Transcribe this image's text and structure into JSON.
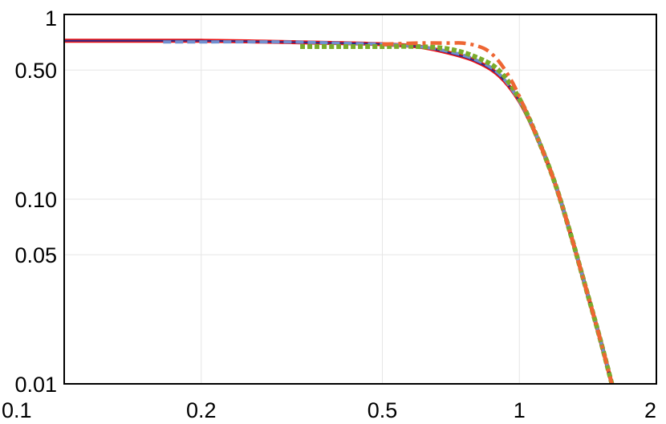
{
  "chart_data": {
    "type": "line",
    "title": "",
    "xlabel": "",
    "ylabel": "",
    "xscale": "log",
    "yscale": "log",
    "xlim": [
      0.1,
      2
    ],
    "ylim": [
      0.01,
      1
    ],
    "grid": true,
    "legend": "none",
    "x_ticks": [
      {
        "value": 0.1,
        "label": "0.1"
      },
      {
        "value": 0.2,
        "label": "0.2"
      },
      {
        "value": 0.5,
        "label": "0.5"
      },
      {
        "value": 1,
        "label": "1"
      },
      {
        "value": 2,
        "label": "2"
      }
    ],
    "y_ticks": [
      {
        "value": 0.01,
        "label": "0.01"
      },
      {
        "value": 0.05,
        "label": "0.05"
      },
      {
        "value": 0.1,
        "label": "0.10"
      },
      {
        "value": 0.5,
        "label": "0.50"
      },
      {
        "value": 1,
        "label": "1"
      }
    ],
    "series": [
      {
        "color": "#ee1111",
        "style": "solid",
        "x": [
          0.1,
          0.2,
          0.3,
          0.4,
          0.5,
          0.6,
          0.7,
          0.8,
          0.9,
          1.0,
          1.1,
          1.2,
          1.3,
          1.4,
          1.5,
          1.6
        ],
        "y": [
          0.72,
          0.72,
          0.71,
          0.7,
          0.69,
          0.67,
          0.62,
          0.56,
          0.47,
          0.34,
          0.21,
          0.12,
          0.063,
          0.033,
          0.018,
          0.0098
        ]
      },
      {
        "color": "#2a2d8f",
        "style": "solid-thin",
        "x": [
          0.1,
          0.2,
          0.3,
          0.4,
          0.5,
          0.6,
          0.7,
          0.8,
          0.9,
          1.0,
          1.1,
          1.2,
          1.3,
          1.4,
          1.5,
          1.6
        ],
        "y": [
          0.72,
          0.72,
          0.71,
          0.7,
          0.69,
          0.67,
          0.62,
          0.56,
          0.47,
          0.34,
          0.21,
          0.12,
          0.063,
          0.033,
          0.018,
          0.0098
        ]
      },
      {
        "color": "#6f8fd0",
        "style": "dashed",
        "x": [
          0.165,
          0.2,
          0.3,
          0.4,
          0.5,
          0.6,
          0.7,
          0.8,
          0.9,
          1.0,
          1.1,
          1.2,
          1.3,
          1.4,
          1.5,
          1.6
        ],
        "y": [
          0.71,
          0.71,
          0.71,
          0.7,
          0.69,
          0.67,
          0.63,
          0.57,
          0.48,
          0.34,
          0.21,
          0.12,
          0.063,
          0.033,
          0.018,
          0.0098
        ]
      },
      {
        "color": "#7aab2a",
        "style": "dotted",
        "x": [
          0.33,
          0.4,
          0.5,
          0.6,
          0.7,
          0.8,
          0.9,
          1.0,
          1.1,
          1.2,
          1.3,
          1.4,
          1.5,
          1.6
        ],
        "y": [
          0.67,
          0.67,
          0.67,
          0.67,
          0.65,
          0.59,
          0.5,
          0.35,
          0.21,
          0.12,
          0.063,
          0.033,
          0.018,
          0.0098
        ]
      },
      {
        "color": "#ee6633",
        "style": "dashdot",
        "x": [
          0.5,
          0.6,
          0.7,
          0.75,
          0.8,
          0.85,
          0.9,
          0.95,
          1.0,
          1.1,
          1.2,
          1.3,
          1.4,
          1.5,
          1.6
        ],
        "y": [
          0.69,
          0.7,
          0.7,
          0.7,
          0.68,
          0.64,
          0.56,
          0.46,
          0.36,
          0.21,
          0.12,
          0.063,
          0.033,
          0.018,
          0.0098
        ]
      }
    ]
  }
}
